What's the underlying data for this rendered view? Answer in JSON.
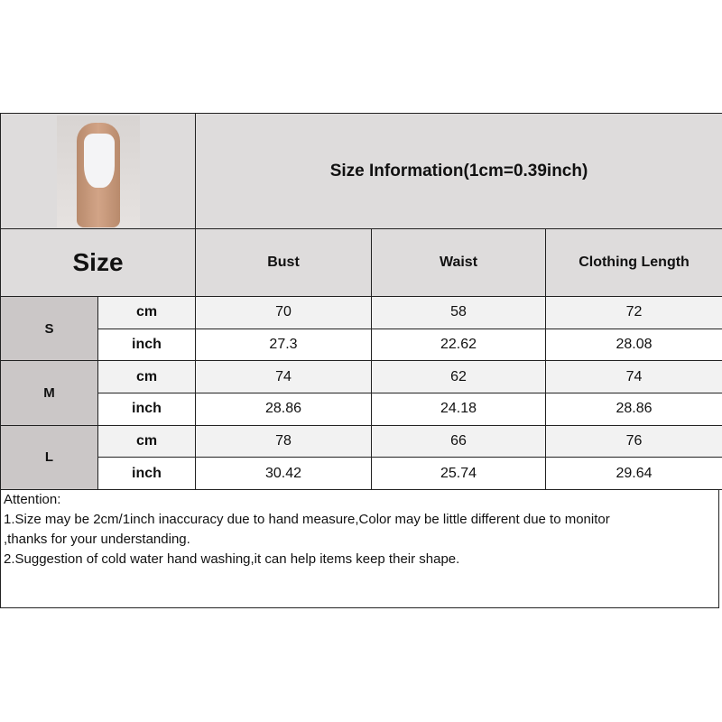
{
  "header": {
    "title": "Size Information(1cm=0.39inch)",
    "product_image": "white bodysuit model photo"
  },
  "columns": {
    "size_label": "Size",
    "headers": [
      "Bust",
      "Waist",
      "Clothing Length"
    ]
  },
  "rows": [
    {
      "size": "S",
      "cm": {
        "unit": "cm",
        "values": [
          "70",
          "58",
          "72"
        ]
      },
      "inch": {
        "unit": "inch",
        "values": [
          "27.3",
          "22.62",
          "28.08"
        ]
      }
    },
    {
      "size": "M",
      "cm": {
        "unit": "cm",
        "values": [
          "74",
          "62",
          "74"
        ]
      },
      "inch": {
        "unit": "inch",
        "values": [
          "28.86",
          "24.18",
          "28.86"
        ]
      }
    },
    {
      "size": "L",
      "cm": {
        "unit": "cm",
        "values": [
          "78",
          "66",
          "76"
        ]
      },
      "inch": {
        "unit": "inch",
        "values": [
          "30.42",
          "25.74",
          "29.64"
        ]
      }
    }
  ],
  "attention": {
    "heading": "Attention:",
    "lines": [
      "1.Size may be 2cm/1inch inaccuracy due to hand measure,Color may be little different due to monitor",
      ",thanks for your understanding.",
      "2.Suggestion of cold water hand washing,it can help items keep their shape."
    ]
  }
}
